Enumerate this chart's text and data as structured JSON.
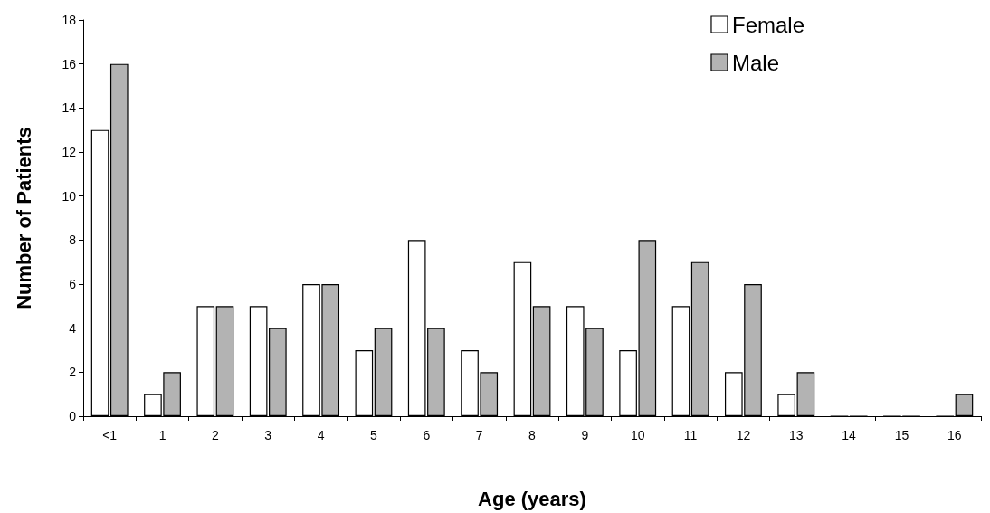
{
  "chart_data": {
    "type": "bar",
    "xlabel": "Age (years)",
    "ylabel": "Number of Patients",
    "categories": [
      "<1",
      "1",
      "2",
      "3",
      "4",
      "5",
      "6",
      "7",
      "8",
      "9",
      "10",
      "11",
      "12",
      "13",
      "14",
      "15",
      "16"
    ],
    "series": [
      {
        "name": "Female",
        "color": "#ffffff",
        "values": [
          13,
          1,
          5,
          5,
          6,
          3,
          8,
          3,
          7,
          5,
          3,
          5,
          2,
          1,
          0,
          0,
          0
        ]
      },
      {
        "name": "Male",
        "color": "#b3b3b3",
        "values": [
          16,
          2,
          5,
          4,
          6,
          4,
          4,
          2,
          5,
          4,
          8,
          7,
          6,
          2,
          0,
          0,
          1
        ]
      }
    ],
    "ylim": [
      0,
      18
    ],
    "yticks": [
      0,
      2,
      4,
      6,
      8,
      10,
      12,
      14,
      16,
      18
    ],
    "grid": false,
    "legend": "top right"
  }
}
